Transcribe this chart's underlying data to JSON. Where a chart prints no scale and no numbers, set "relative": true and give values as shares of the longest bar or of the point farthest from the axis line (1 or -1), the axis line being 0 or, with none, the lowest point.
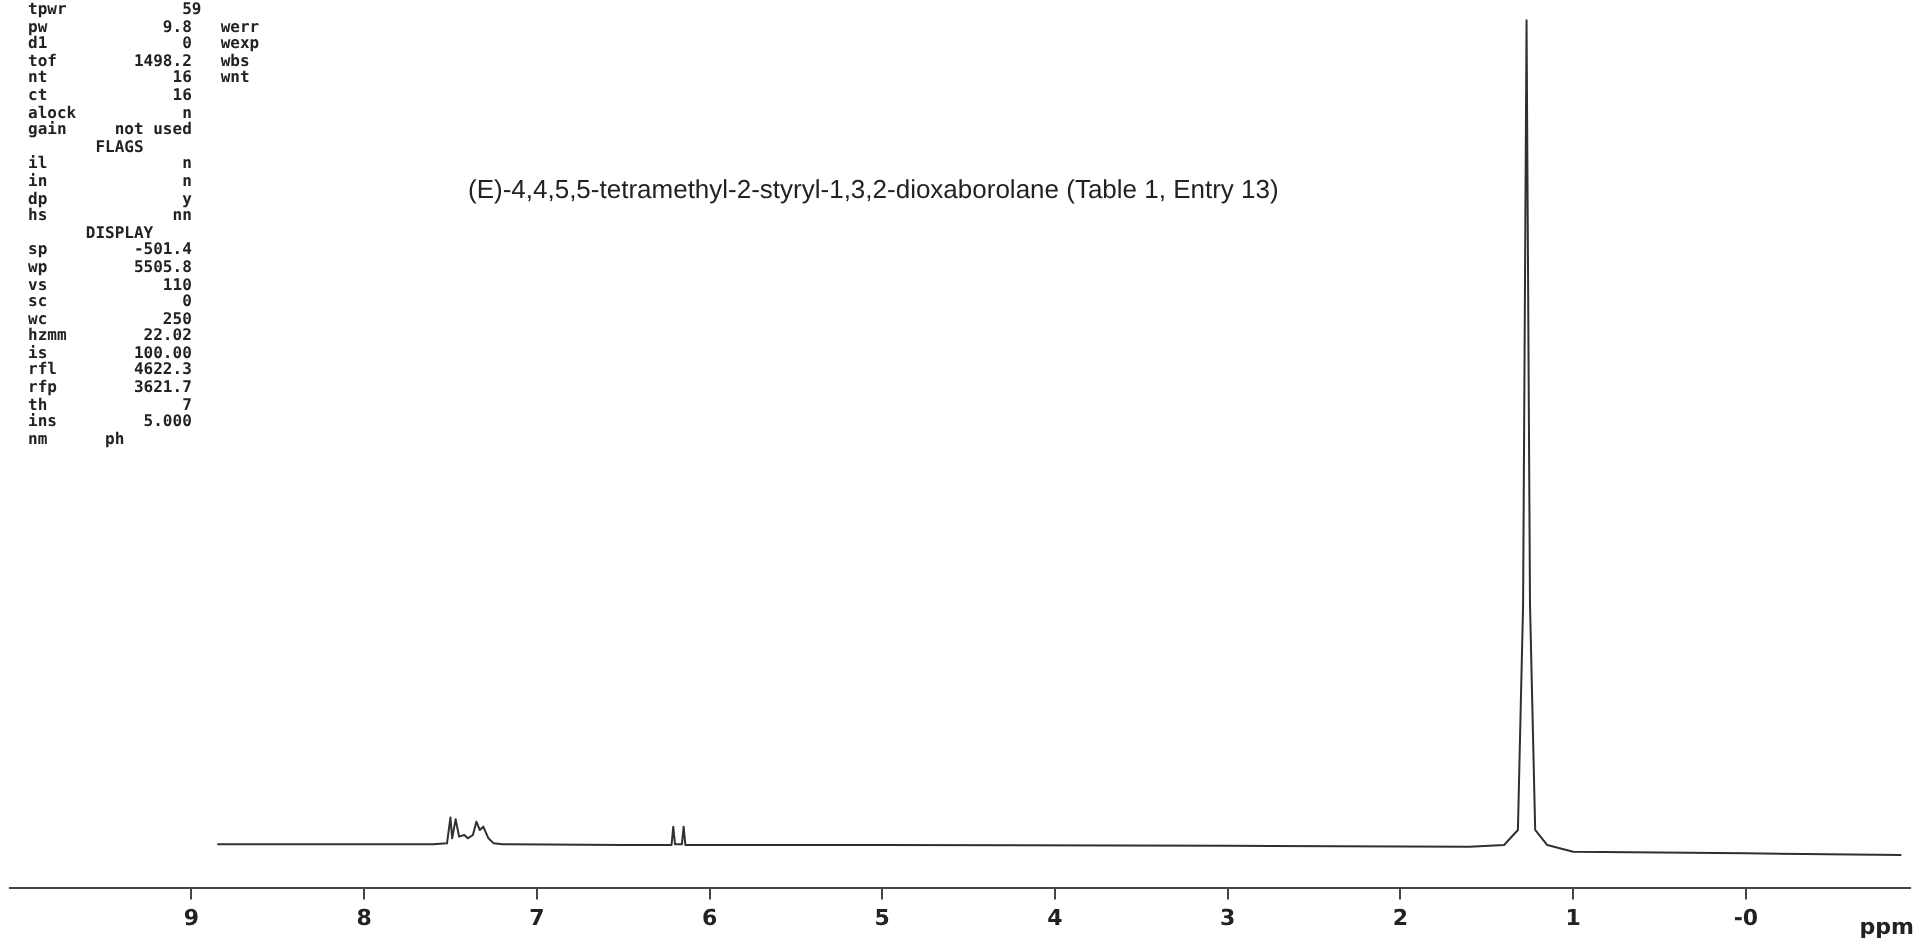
{
  "chart_data": {
    "type": "line",
    "relative": true,
    "title": "(E)-4,4,5,5-tetramethyl-2-styryl-1,3,2-dioxaborolane (Table 1, Entry 13)",
    "xlabel": "ppm",
    "color": "#303030",
    "legend": false,
    "grid": false,
    "marker": "none",
    "tick_labels": "x",
    "annotations": [
      "tpwr            59",
      "pw            9.8   werr",
      "d1              0   wexp",
      "tof        1498.2   wbs",
      "nt             16   wnt",
      "ct             16",
      "alock           n",
      "gain     not used",
      "       FLAGS",
      "il              n",
      "in              n",
      "dp              y",
      "hs             nn",
      "      DISPLAY",
      "sp         -501.4",
      "wp         5505.8",
      "vs            110",
      "sc              0",
      "wc            250",
      "hzmm        22.02",
      "is         100.00",
      "rfl        4622.3",
      "rfp        3621.7",
      "th              7",
      "ins         5.000",
      "nm      ph"
    ],
    "xlim": [
      10.05,
      -0.95
    ],
    "xticks": [
      9,
      8,
      7,
      6,
      5,
      4,
      3,
      2,
      1,
      {
        "value": 0,
        "label": "-0"
      }
    ],
    "x": [
      8.85,
      8.0,
      7.6,
      7.52,
      7.5,
      7.49,
      7.47,
      7.45,
      7.42,
      7.4,
      7.37,
      7.35,
      7.33,
      7.31,
      7.28,
      7.25,
      7.2,
      6.5,
      6.22,
      6.21,
      6.2,
      6.16,
      6.15,
      6.14,
      5.0,
      3.0,
      1.6,
      1.4,
      1.32,
      1.29,
      1.27,
      1.25,
      1.22,
      1.15,
      1.0,
      0.0,
      -0.9
    ],
    "values": [
      0.013,
      0.013,
      0.013,
      0.014,
      0.045,
      0.02,
      0.043,
      0.022,
      0.024,
      0.02,
      0.024,
      0.04,
      0.03,
      0.034,
      0.02,
      0.014,
      0.013,
      0.012,
      0.012,
      0.034,
      0.013,
      0.013,
      0.034,
      0.012,
      0.012,
      0.011,
      0.01,
      0.012,
      0.03,
      0.3,
      1,
      0.3,
      0.03,
      0.012,
      0.004,
      0.002,
      0
    ]
  }
}
